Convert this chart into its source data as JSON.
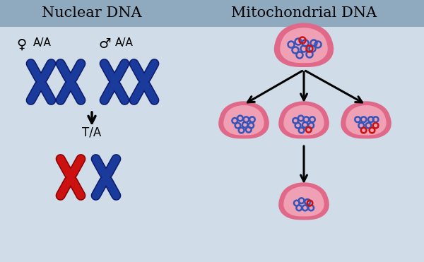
{
  "bg_color": "#d0dde8",
  "header_color": "#8faabf",
  "title_left": "Nuclear DNA",
  "title_right": "Mitochondrial DNA",
  "chrom_blue": "#1a3a9c",
  "chrom_blue_dark": "#0a1a6c",
  "chrom_red": "#cc1111",
  "chrom_red_dark": "#880000",
  "cell_outer": "#e06888",
  "cell_inner": "#f0a0b5",
  "circle_blue": "#3355bb",
  "circle_red": "#cc1111",
  "figsize": [
    6.0,
    3.71
  ],
  "dpi": 100,
  "parent_blue_circles": [
    [
      -18,
      8
    ],
    [
      -8,
      12
    ],
    [
      2,
      10
    ],
    [
      14,
      10
    ],
    [
      20,
      8
    ],
    [
      -12,
      0
    ],
    [
      0,
      2
    ],
    [
      12,
      2
    ],
    [
      -6,
      -7
    ],
    [
      8,
      -6
    ]
  ],
  "parent_red_circles": [
    [
      -2,
      14
    ],
    [
      8,
      2
    ]
  ],
  "child1_blue_circles": [
    [
      -15,
      6
    ],
    [
      -6,
      10
    ],
    [
      4,
      8
    ],
    [
      14,
      8
    ],
    [
      -10,
      -2
    ],
    [
      2,
      -1
    ],
    [
      12,
      -2
    ],
    [
      -4,
      -10
    ],
    [
      8,
      -9
    ]
  ],
  "child1_red_circles": [],
  "child2_blue_circles": [
    [
      -14,
      6
    ],
    [
      -5,
      10
    ],
    [
      4,
      8
    ],
    [
      14,
      8
    ],
    [
      -10,
      -2
    ],
    [
      2,
      -1
    ],
    [
      12,
      -2
    ],
    [
      -4,
      -10
    ]
  ],
  "child2_red_circles": [
    [
      8,
      -9
    ]
  ],
  "child3_blue_circles": [
    [
      -14,
      8
    ],
    [
      -4,
      8
    ],
    [
      8,
      8
    ],
    [
      16,
      8
    ],
    [
      -8,
      -2
    ],
    [
      4,
      -2
    ]
  ],
  "child3_red_circles": [
    [
      -4,
      -10
    ],
    [
      10,
      -10
    ],
    [
      16,
      -2
    ]
  ],
  "gc_blue_circles": [
    [
      -12,
      4
    ],
    [
      -4,
      8
    ],
    [
      6,
      6
    ],
    [
      -8,
      -4
    ],
    [
      2,
      -4
    ],
    [
      12,
      -4
    ]
  ],
  "gc_red_circles": [
    [
      10,
      4
    ]
  ]
}
